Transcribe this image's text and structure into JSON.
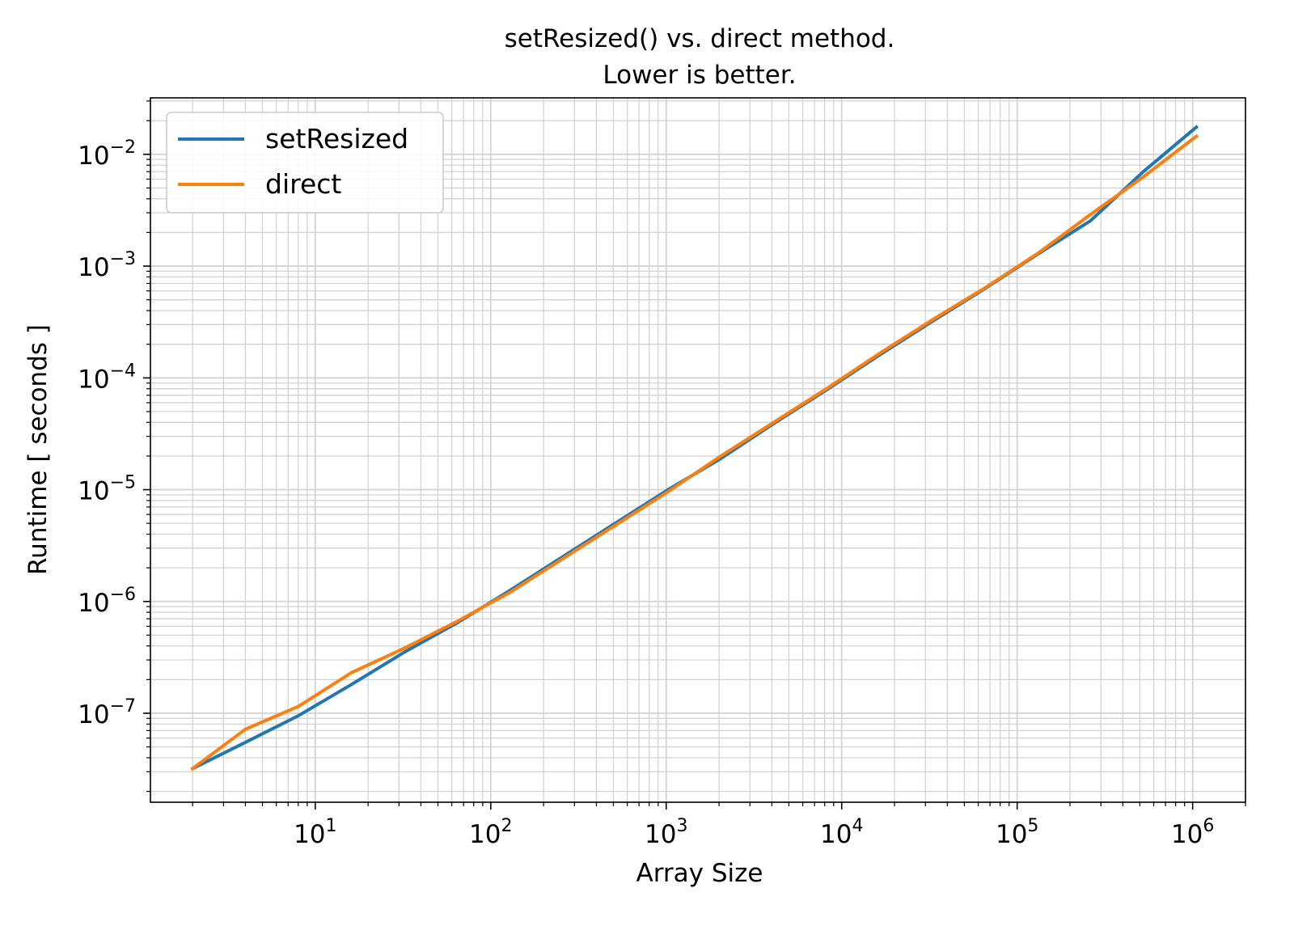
{
  "chart_data": {
    "type": "line",
    "title": [
      "setResized() vs. direct method.",
      "Lower is better."
    ],
    "xlabel": "Array Size",
    "ylabel": "Runtime [ seconds ]",
    "xscale": "log",
    "yscale": "log",
    "xlim": [
      1.15,
      2000000
    ],
    "ylim": [
      1.6e-08,
      0.032
    ],
    "grid": "major-and-minor",
    "legend_position": "top-left",
    "x_ticks": [
      {
        "base": "10",
        "exp": "1",
        "value": 10
      },
      {
        "base": "10",
        "exp": "2",
        "value": 100
      },
      {
        "base": "10",
        "exp": "3",
        "value": 1000
      },
      {
        "base": "10",
        "exp": "4",
        "value": 10000
      },
      {
        "base": "10",
        "exp": "5",
        "value": 100000
      },
      {
        "base": "10",
        "exp": "6",
        "value": 1000000
      }
    ],
    "y_ticks": [
      {
        "base": "10",
        "exp": "−7",
        "value": 1e-07
      },
      {
        "base": "10",
        "exp": "−6",
        "value": 1e-06
      },
      {
        "base": "10",
        "exp": "−5",
        "value": 1e-05
      },
      {
        "base": "10",
        "exp": "−4",
        "value": 0.0001
      },
      {
        "base": "10",
        "exp": "−3",
        "value": 0.001
      },
      {
        "base": "10",
        "exp": "−2",
        "value": 0.01
      }
    ],
    "x": [
      2,
      4,
      8,
      16,
      32,
      64,
      128,
      256,
      512,
      1024,
      2048,
      4096,
      8192,
      16384,
      32768,
      65536,
      131072,
      262144,
      524288,
      1048576
    ],
    "series": [
      {
        "name": "setResized",
        "color": "#1f77b4",
        "values": [
          3.2e-08,
          5.5e-08,
          9.5e-08,
          1.8e-07,
          3.5e-07,
          6.4e-07,
          1.25e-06,
          2.5e-06,
          5e-06,
          1e-05,
          1.9e-05,
          3.9e-05,
          7.8e-05,
          0.00016,
          0.00032,
          0.00063,
          0.00128,
          0.00255,
          0.007,
          0.0175
        ]
      },
      {
        "name": "direct",
        "color": "#ff7f0e",
        "values": [
          3.2e-08,
          7.2e-08,
          1.15e-07,
          2.3e-07,
          3.8e-07,
          6.6e-07,
          1.2e-06,
          2.4e-06,
          4.8e-06,
          9.6e-06,
          2e-05,
          4e-05,
          8e-05,
          0.000165,
          0.00033,
          0.00064,
          0.0013,
          0.0029,
          0.0063,
          0.0145
        ]
      }
    ]
  }
}
